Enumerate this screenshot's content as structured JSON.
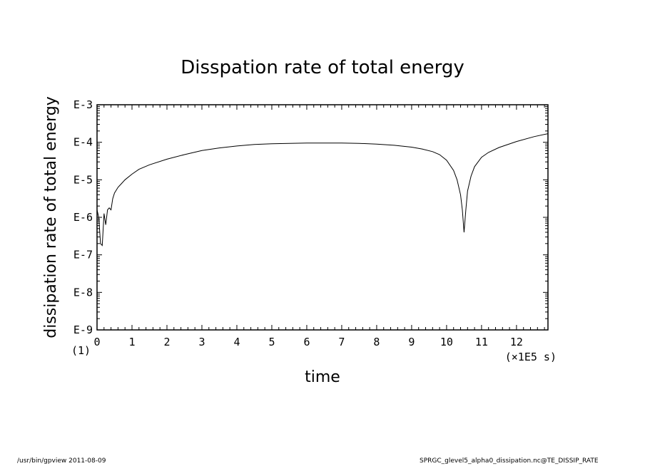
{
  "chart_data": {
    "type": "line",
    "title": "Disspation rate of total energy",
    "xlabel": "time",
    "ylabel": "dissipation rate of total energy",
    "x_unit": "(×1E5 s)",
    "panel_label": "(1)",
    "xlim": [
      0,
      12.9
    ],
    "ylim_log10": [
      -9,
      -3
    ],
    "y_scale": "log",
    "x_ticks": [
      0,
      1,
      2,
      3,
      4,
      5,
      6,
      7,
      8,
      9,
      10,
      11,
      12
    ],
    "y_ticks": [
      {
        "exp": -3,
        "label": "E-3"
      },
      {
        "exp": -4,
        "label": "E-4"
      },
      {
        "exp": -5,
        "label": "E-5"
      },
      {
        "exp": -6,
        "label": "E-6"
      },
      {
        "exp": -7,
        "label": "E-7"
      },
      {
        "exp": -8,
        "label": "E-8"
      },
      {
        "exp": -9,
        "label": "E-9"
      }
    ],
    "grid": false,
    "line_color": "#000000",
    "series": [
      {
        "x": [
          0,
          0.05,
          0.1,
          0.15,
          0.2,
          0.25,
          0.3,
          0.35,
          0.4,
          0.45,
          0.5,
          0.6,
          0.7,
          0.8,
          1.0,
          1.2,
          1.5,
          2.0,
          2.5,
          3.0,
          3.5,
          4.0,
          4.5,
          5.0,
          5.5,
          6.0,
          6.5,
          7.0,
          7.5,
          8.0,
          8.5,
          9.0,
          9.3,
          9.6,
          9.8,
          10.0,
          10.2,
          10.3,
          10.4,
          10.45,
          10.5,
          10.55,
          10.6,
          10.7,
          10.8,
          11.0,
          11.2,
          11.5,
          12.0,
          12.5,
          12.9
        ],
        "y_log10": [
          -5.8,
          -6.0,
          -6.7,
          -6.75,
          -5.9,
          -6.2,
          -5.8,
          -5.75,
          -5.8,
          -5.5,
          -5.35,
          -5.2,
          -5.1,
          -5.0,
          -4.85,
          -4.72,
          -4.6,
          -4.45,
          -4.33,
          -4.22,
          -4.15,
          -4.1,
          -4.06,
          -4.04,
          -4.03,
          -4.02,
          -4.02,
          -4.02,
          -4.03,
          -4.05,
          -4.08,
          -4.13,
          -4.18,
          -4.25,
          -4.33,
          -4.48,
          -4.75,
          -5.0,
          -5.4,
          -5.8,
          -6.4,
          -5.8,
          -5.3,
          -4.9,
          -4.65,
          -4.4,
          -4.27,
          -4.14,
          -3.98,
          -3.85,
          -3.77
        ]
      }
    ]
  },
  "footer": {
    "left": "/usr/bin/gpview   2011-08-09",
    "right": "SPRGC_glevel5_alpha0_dissipation.nc@TE_DISSIP_RATE"
  }
}
